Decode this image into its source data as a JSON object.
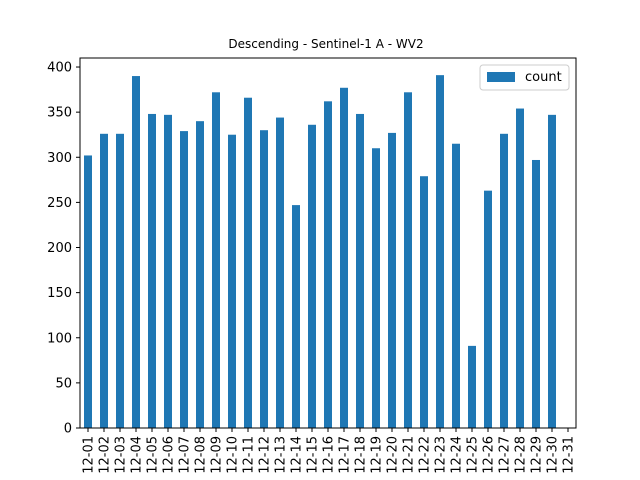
{
  "chart_data": {
    "type": "bar",
    "title": "Descending - Sentinel-1 A - WV2",
    "xlabel": "",
    "ylabel": "",
    "categories": [
      "12-01",
      "12-02",
      "12-03",
      "12-04",
      "12-05",
      "12-06",
      "12-07",
      "12-08",
      "12-09",
      "12-10",
      "12-11",
      "12-12",
      "12-13",
      "12-14",
      "12-15",
      "12-16",
      "12-17",
      "12-18",
      "12-19",
      "12-20",
      "12-21",
      "12-22",
      "12-23",
      "12-24",
      "12-25",
      "12-26",
      "12-27",
      "12-28",
      "12-29",
      "12-30",
      "12-31"
    ],
    "series": [
      {
        "name": "count",
        "color": "#1f77b4",
        "values": [
          302,
          326,
          326,
          390,
          348,
          347,
          329,
          340,
          372,
          325,
          366,
          330,
          344,
          247,
          336,
          362,
          377,
          348,
          310,
          327,
          372,
          279,
          391,
          315,
          91,
          263,
          326,
          354,
          297,
          347,
          0
        ]
      }
    ],
    "ylim": [
      0,
      410
    ],
    "yticks": [
      0,
      50,
      100,
      150,
      200,
      250,
      300,
      350,
      400
    ],
    "grid": false,
    "legend_position": "top-right"
  }
}
